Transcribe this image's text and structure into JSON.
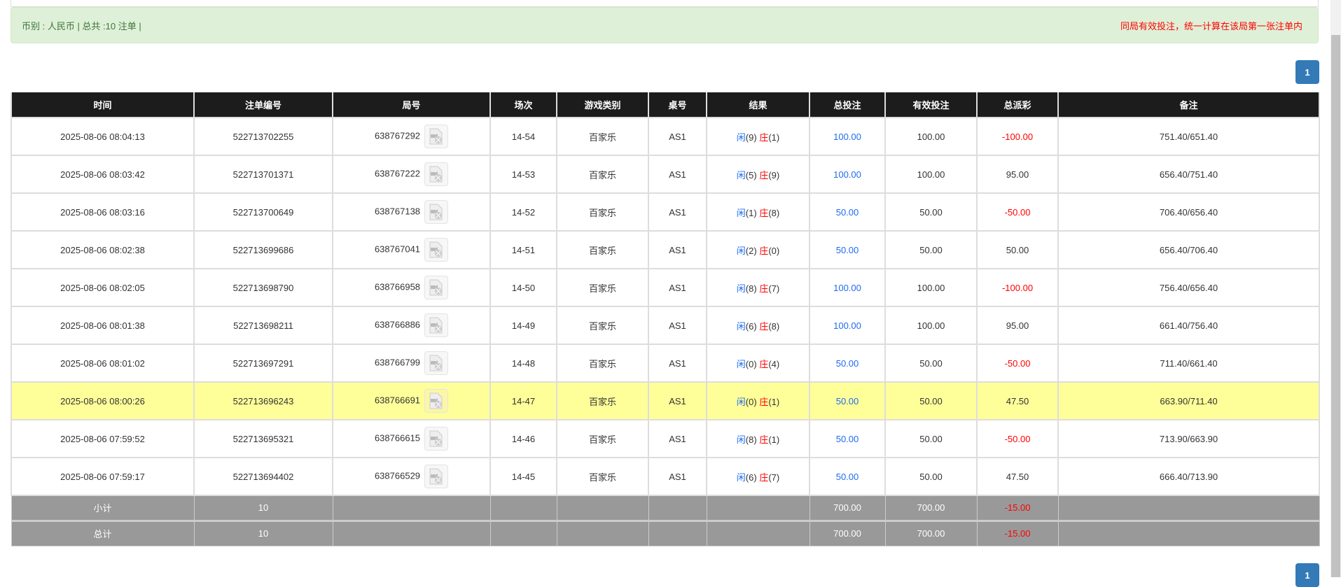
{
  "summary": {
    "text": "币别 : 人民币 | 总共 :10 注单 |",
    "note": "同局有效投注，统一计算在该局第一张注单内"
  },
  "pagination": {
    "current": "1"
  },
  "columns": [
    "时间",
    "注单编号",
    "局号",
    "场次",
    "游戏类别",
    "桌号",
    "结果",
    "总投注",
    "有效投注",
    "总派彩",
    "备注"
  ],
  "result_labels": {
    "player": "闲",
    "banker": "庄"
  },
  "rows": [
    {
      "time": "2025-08-06 08:04:13",
      "bet_id": "522713702255",
      "round": "638767292",
      "shoe": "14-54",
      "game": "百家乐",
      "table": "AS1",
      "player": "(9)",
      "banker": "(1)",
      "total": "100.00",
      "valid": "100.00",
      "payout": "-100.00",
      "remark": "751.40/651.40"
    },
    {
      "time": "2025-08-06 08:03:42",
      "bet_id": "522713701371",
      "round": "638767222",
      "shoe": "14-53",
      "game": "百家乐",
      "table": "AS1",
      "player": "(5)",
      "banker": "(9)",
      "total": "100.00",
      "valid": "100.00",
      "payout": "95.00",
      "remark": "656.40/751.40"
    },
    {
      "time": "2025-08-06 08:03:16",
      "bet_id": "522713700649",
      "round": "638767138",
      "shoe": "14-52",
      "game": "百家乐",
      "table": "AS1",
      "player": "(1)",
      "banker": "(8)",
      "total": "50.00",
      "valid": "50.00",
      "payout": "-50.00",
      "remark": "706.40/656.40"
    },
    {
      "time": "2025-08-06 08:02:38",
      "bet_id": "522713699686",
      "round": "638767041",
      "shoe": "14-51",
      "game": "百家乐",
      "table": "AS1",
      "player": "(2)",
      "banker": "(0)",
      "total": "50.00",
      "valid": "50.00",
      "payout": "50.00",
      "remark": "656.40/706.40"
    },
    {
      "time": "2025-08-06 08:02:05",
      "bet_id": "522713698790",
      "round": "638766958",
      "shoe": "14-50",
      "game": "百家乐",
      "table": "AS1",
      "player": "(8)",
      "banker": "(7)",
      "total": "100.00",
      "valid": "100.00",
      "payout": "-100.00",
      "remark": "756.40/656.40"
    },
    {
      "time": "2025-08-06 08:01:38",
      "bet_id": "522713698211",
      "round": "638766886",
      "shoe": "14-49",
      "game": "百家乐",
      "table": "AS1",
      "player": "(6)",
      "banker": "(8)",
      "total": "100.00",
      "valid": "100.00",
      "payout": "95.00",
      "remark": "661.40/756.40"
    },
    {
      "time": "2025-08-06 08:01:02",
      "bet_id": "522713697291",
      "round": "638766799",
      "shoe": "14-48",
      "game": "百家乐",
      "table": "AS1",
      "player": "(0)",
      "banker": "(4)",
      "total": "50.00",
      "valid": "50.00",
      "payout": "-50.00",
      "remark": "711.40/661.40"
    },
    {
      "time": "2025-08-06 08:00:26",
      "bet_id": "522713696243",
      "round": "638766691",
      "shoe": "14-47",
      "game": "百家乐",
      "table": "AS1",
      "player": "(0)",
      "banker": "(1)",
      "total": "50.00",
      "valid": "50.00",
      "payout": "47.50",
      "remark": "663.90/711.40",
      "highlight": true
    },
    {
      "time": "2025-08-06 07:59:52",
      "bet_id": "522713695321",
      "round": "638766615",
      "shoe": "14-46",
      "game": "百家乐",
      "table": "AS1",
      "player": "(8)",
      "banker": "(1)",
      "total": "50.00",
      "valid": "50.00",
      "payout": "-50.00",
      "remark": "713.90/663.90"
    },
    {
      "time": "2025-08-06 07:59:17",
      "bet_id": "522713694402",
      "round": "638766529",
      "shoe": "14-45",
      "game": "百家乐",
      "table": "AS1",
      "player": "(6)",
      "banker": "(7)",
      "total": "50.00",
      "valid": "50.00",
      "payout": "47.50",
      "remark": "666.40/713.90"
    }
  ],
  "subtotal": {
    "label": "小计",
    "count": "10",
    "total": "700.00",
    "valid": "700.00",
    "payout": "-15.00"
  },
  "grandtotal": {
    "label": "总计",
    "count": "10",
    "total": "700.00",
    "valid": "700.00",
    "payout": "-15.00"
  },
  "colors": {
    "player": "#1e6cf0",
    "banker": "#ff0000",
    "header": "#1c1c1c",
    "highlight": "#ffff99",
    "pagination": "#337ab7"
  }
}
